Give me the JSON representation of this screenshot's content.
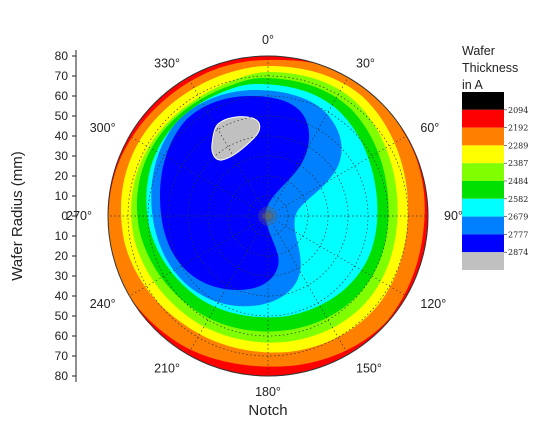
{
  "chart_data": {
    "type": "heatmap",
    "subtype": "polar-contour",
    "ylabel": "Wafer Radius (mm)",
    "xlabel": "Notch",
    "radius_ticks_top": [
      80,
      70,
      60,
      50,
      40,
      30,
      20,
      10,
      0
    ],
    "radius_ticks_bottom": [
      10,
      20,
      30,
      40,
      50,
      60,
      70,
      80
    ],
    "radius_max": 80,
    "angle_ticks": [
      "0°",
      "30°",
      "60°",
      "90°",
      "120°",
      "150°",
      "180°",
      "210°",
      "240°",
      "270°",
      "300°",
      "330°"
    ],
    "angle_values_deg": [
      0,
      30,
      60,
      90,
      120,
      150,
      180,
      210,
      240,
      270,
      300,
      330
    ],
    "legend": {
      "title_lines": [
        "Wafer",
        "Thickness",
        "in A"
      ],
      "levels": [
        "2094",
        "2192",
        "2289",
        "2387",
        "2484",
        "2582",
        "2679",
        "2777",
        "2874"
      ],
      "colors": [
        "#000000",
        "#ff0000",
        "#ff7f00",
        "#ffff00",
        "#80ff00",
        "#00e000",
        "#00ffff",
        "#0080ff",
        "#0000ff",
        "#c0c0c0"
      ]
    },
    "zones": [
      {
        "level": "2094",
        "color": "#ff0000",
        "r": 80
      },
      {
        "level": "2192",
        "color": "#ff7f00",
        "r": 78
      },
      {
        "level": "2289",
        "color": "#ffff00",
        "r": 74
      },
      {
        "level": "2387",
        "color": "#80ff00",
        "r": 70
      },
      {
        "level": "2484",
        "color": "#00e000",
        "r": 66
      },
      {
        "level": "2582",
        "color": "#00ffff",
        "r": 60
      },
      {
        "level": "2679",
        "color": "#0080ff",
        "r": 55
      },
      {
        "level": "2777",
        "color": "#0000ff",
        "r": 48
      },
      {
        "level": "2874",
        "color": "#c0c0c0",
        "r": 8
      }
    ]
  }
}
